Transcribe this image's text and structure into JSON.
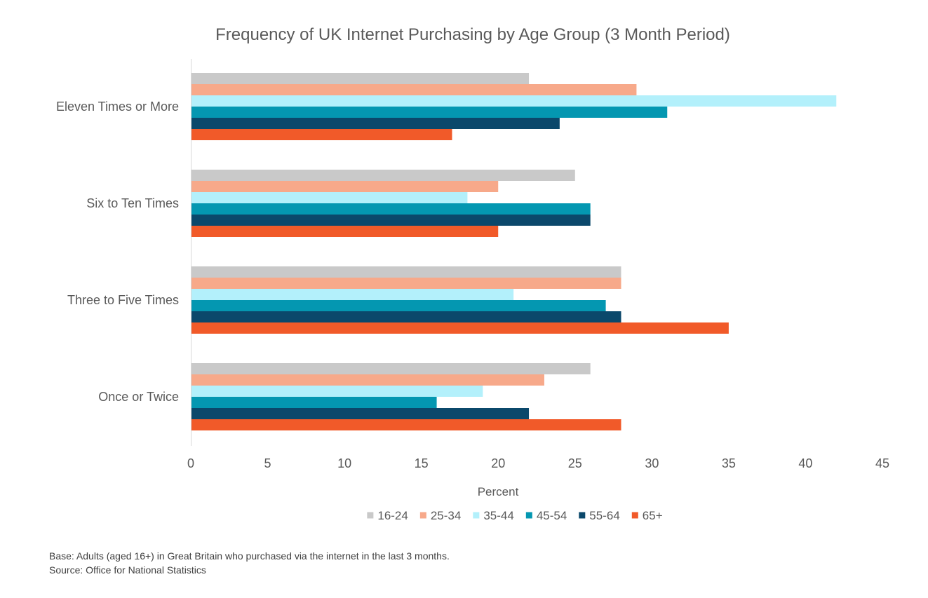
{
  "colors": {
    "16-24": "#c9c9c9",
    "25-34": "#f7a98a",
    "35-44": "#b3f0fb",
    "45-54": "#0497b1",
    "55-64": "#0b486b",
    "65+": "#f15a29"
  },
  "footnotes": {
    "base": "Base:  Adults (aged 16+) in Great Britain who purchased via the internet in the last 3 months.",
    "source": "Source: Office for National Statistics"
  },
  "chart_data": {
    "type": "bar",
    "orientation": "horizontal",
    "title": "Frequency of UK Internet Purchasing by Age Group (3 Month Period)",
    "xlabel": "Percent",
    "ylabel": "",
    "xlim": [
      0,
      45
    ],
    "xticks": [
      "0",
      "5",
      "10",
      "15",
      "20",
      "25",
      "30",
      "35",
      "40",
      "45"
    ],
    "grid": false,
    "legend_position": "bottom",
    "categories": [
      "Eleven Times or More",
      "Six to Ten Times",
      "Three to Five Times",
      "Once or Twice"
    ],
    "series": [
      {
        "name": "16-24",
        "values": [
          22,
          25,
          28,
          26
        ]
      },
      {
        "name": "25-34",
        "values": [
          29,
          20,
          28,
          23
        ]
      },
      {
        "name": "35-44",
        "values": [
          42,
          18,
          21,
          19
        ]
      },
      {
        "name": "45-54",
        "values": [
          31,
          26,
          27,
          16
        ]
      },
      {
        "name": "55-64",
        "values": [
          24,
          26,
          28,
          22
        ]
      },
      {
        "name": "65+",
        "values": [
          17,
          20,
          35,
          28
        ]
      }
    ]
  }
}
